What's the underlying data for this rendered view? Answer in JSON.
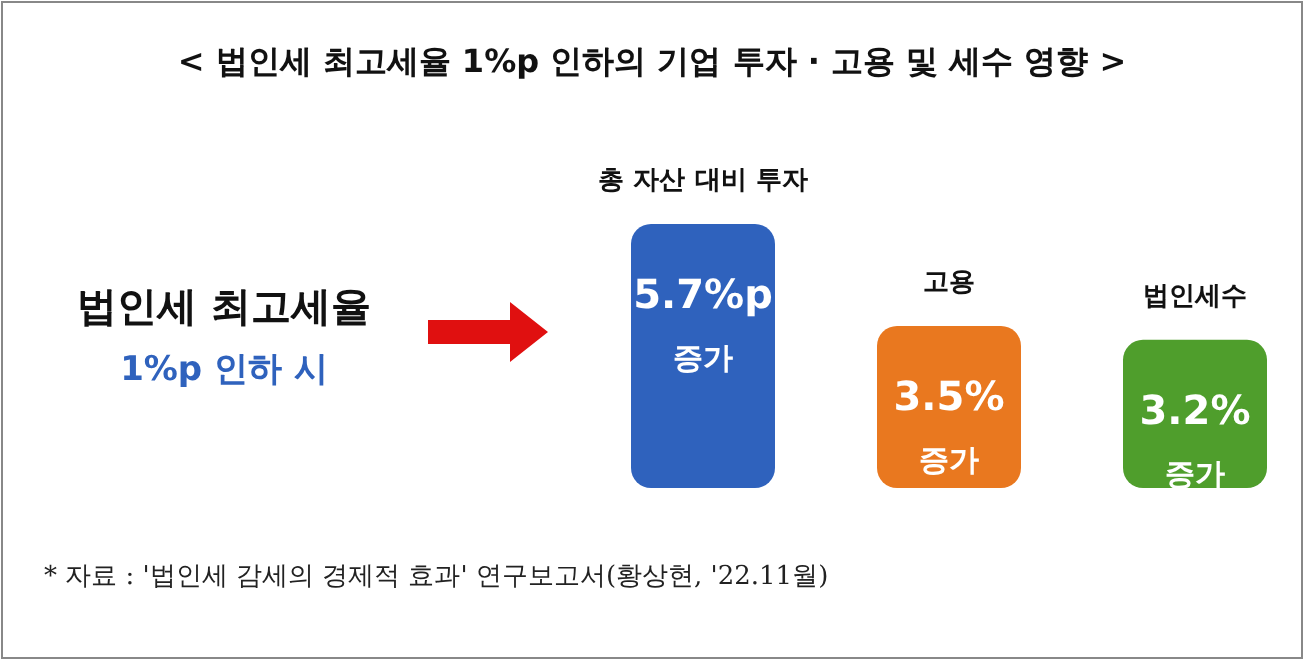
{
  "chart_data": {
    "type": "bar",
    "title": "< 법인세 최고세율 1%p 인하의 기업 투자 · 고용 및 세수 영향 >",
    "categories": [
      "총 자산 대비 투자",
      "고용",
      "법인세수"
    ],
    "values": [
      5.7,
      3.5,
      3.2
    ],
    "colors": [
      "#2f62bd",
      "#e9781f",
      "#4f9e2c"
    ],
    "value_labels": [
      "5.7%p\n증가",
      "3.5%\n증가",
      "3.2%\n증가"
    ],
    "annotations": [
      "법인세 최고세율",
      "1%p 인하 시",
      "* 자료 : '법인세 감세의 경제적 효과' 연구보고서(황상현, '22.11월)"
    ]
  }
}
